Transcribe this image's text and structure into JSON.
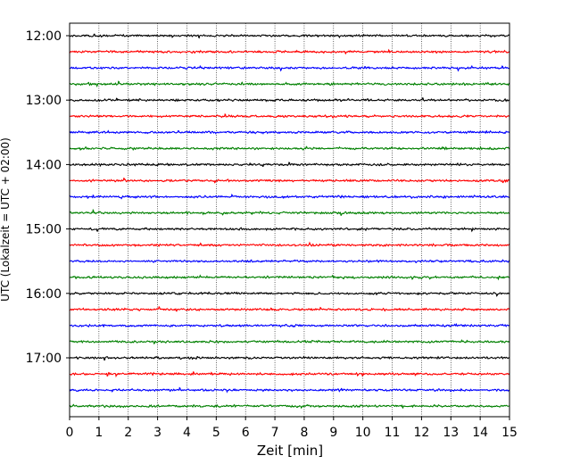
{
  "chart_data": {
    "type": "line",
    "title": "",
    "xlabel": "Zeit  [min]",
    "ylabel": "UTC (Lokalzeit = UTC + 02:00)",
    "xlim": [
      0,
      15
    ],
    "x_ticks": [
      "0",
      "1",
      "2",
      "3",
      "4",
      "5",
      "6",
      "7",
      "8",
      "9",
      "10",
      "11",
      "12",
      "13",
      "14",
      "15"
    ],
    "y_ticks": [
      "12:00",
      "13:00",
      "14:00",
      "15:00",
      "16:00",
      "17:00"
    ],
    "grid": "vertical dotted lines at each minute",
    "trace_interval_minutes": 15,
    "first_trace": "12:00",
    "last_trace": "17:45",
    "color_cycle": [
      "#000000",
      "#ff0000",
      "#0000ff",
      "#008000"
    ],
    "series": [
      {
        "start": "12:00",
        "color": "#000000"
      },
      {
        "start": "12:15",
        "color": "#ff0000"
      },
      {
        "start": "12:30",
        "color": "#0000ff"
      },
      {
        "start": "12:45",
        "color": "#008000"
      },
      {
        "start": "13:00",
        "color": "#000000"
      },
      {
        "start": "13:15",
        "color": "#ff0000"
      },
      {
        "start": "13:30",
        "color": "#0000ff"
      },
      {
        "start": "13:45",
        "color": "#008000"
      },
      {
        "start": "14:00",
        "color": "#000000"
      },
      {
        "start": "14:15",
        "color": "#ff0000"
      },
      {
        "start": "14:30",
        "color": "#0000ff"
      },
      {
        "start": "14:45",
        "color": "#008000"
      },
      {
        "start": "15:00",
        "color": "#000000"
      },
      {
        "start": "15:15",
        "color": "#ff0000"
      },
      {
        "start": "15:30",
        "color": "#0000ff"
      },
      {
        "start": "15:45",
        "color": "#008000"
      },
      {
        "start": "16:00",
        "color": "#000000"
      },
      {
        "start": "16:15",
        "color": "#ff0000"
      },
      {
        "start": "16:30",
        "color": "#0000ff"
      },
      {
        "start": "16:45",
        "color": "#008000"
      },
      {
        "start": "17:00",
        "color": "#000000"
      },
      {
        "start": "17:15",
        "color": "#ff0000"
      },
      {
        "start": "17:30",
        "color": "#0000ff"
      },
      {
        "start": "17:45",
        "color": "#008000"
      }
    ]
  }
}
